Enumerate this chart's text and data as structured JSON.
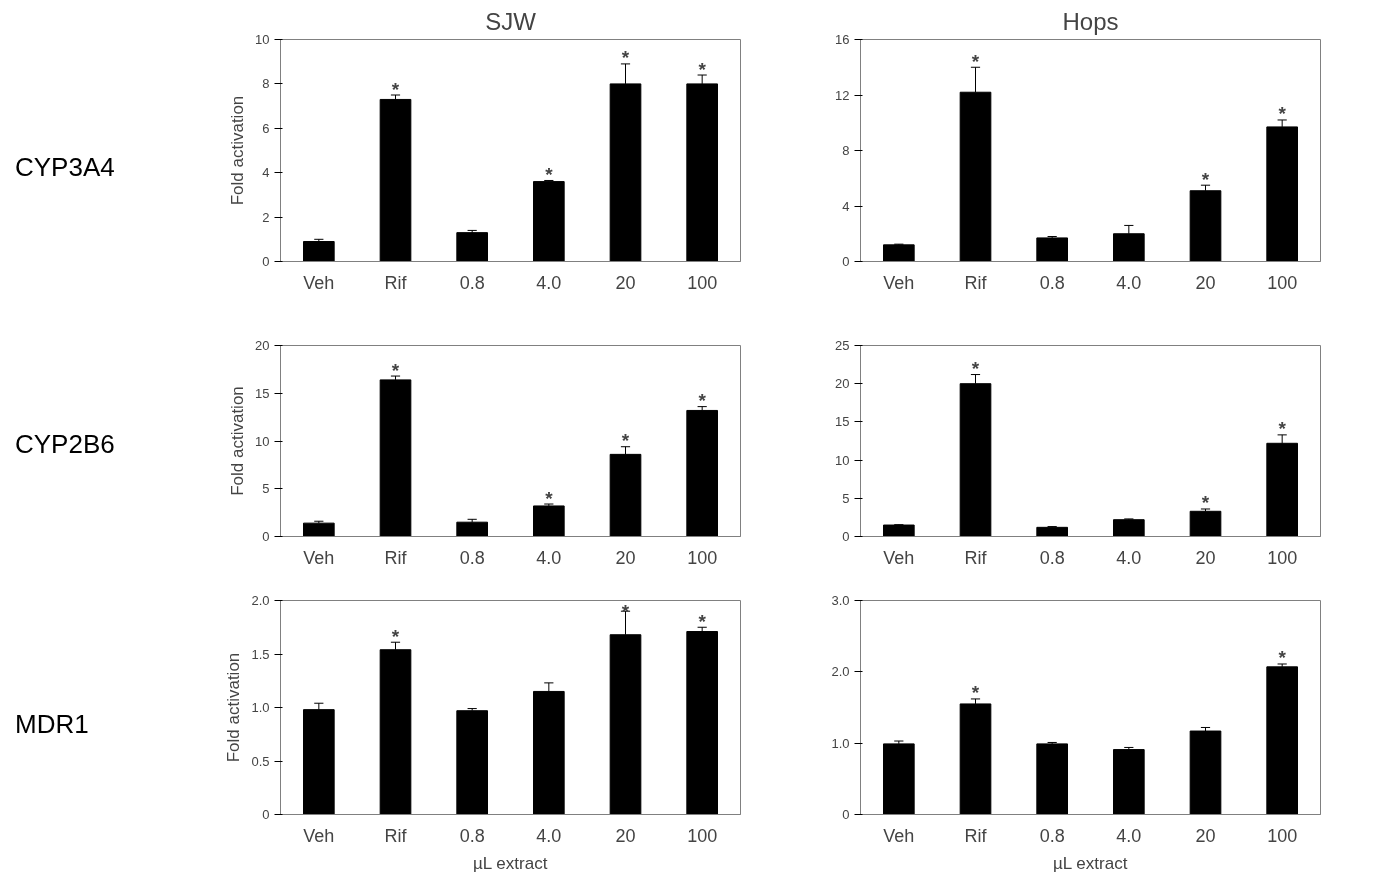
{
  "chart_data": [
    {
      "type": "bar",
      "title": "SJW",
      "ylabel": "Fold activation",
      "categories": [
        "Veh",
        "Rif",
        "0.8",
        "4.0",
        "20",
        "100"
      ],
      "series": [
        {
          "color": "#000000",
          "values": [
            0.9,
            7.3,
            1.3,
            3.6,
            8.0,
            8.0
          ],
          "errors": [
            [
              0.9,
              1.0
            ],
            [
              7.3,
              7.5
            ],
            [
              1.3,
              1.4
            ],
            [
              3.6,
              3.65
            ],
            [
              8.0,
              8.9
            ],
            [
              8.0,
              8.4
            ]
          ]
        }
      ],
      "ylim": [
        0,
        10
      ],
      "yticks": [
        0,
        2,
        4,
        6,
        8,
        10
      ],
      "grid": false,
      "annotations": [
        "CYP3A4",
        {
          "text": "*",
          "x": "Rif",
          "y": 7.5
        },
        {
          "text": "*",
          "x": "4.0",
          "y": 3.65
        },
        {
          "text": "*",
          "x": "20",
          "y": 8.9
        },
        {
          "text": "*",
          "x": "100",
          "y": 8.4
        }
      ]
    },
    {
      "type": "bar",
      "title": "Hops",
      "categories": [
        "Veh",
        "Rif",
        "0.8",
        "4.0",
        "20",
        "100"
      ],
      "series": [
        {
          "color": "#000000",
          "values": [
            1.2,
            12.2,
            1.7,
            2.0,
            5.1,
            9.7
          ],
          "errors": [
            [
              1.2,
              1.25
            ],
            [
              12.2,
              14.0
            ],
            [
              1.7,
              1.8
            ],
            [
              2.0,
              2.6
            ],
            [
              5.1,
              5.5
            ],
            [
              9.7,
              10.2
            ]
          ]
        }
      ],
      "ylim": [
        0,
        16
      ],
      "yticks": [
        0,
        4,
        8,
        12,
        16
      ],
      "grid": false,
      "annotations": [
        {
          "text": "*",
          "x": "Rif",
          "y": 14.0
        },
        {
          "text": "*",
          "x": "20",
          "y": 5.5
        },
        {
          "text": "*",
          "x": "100",
          "y": 10.2
        }
      ]
    },
    {
      "type": "bar",
      "ylabel": "Fold activation",
      "categories": [
        "Veh",
        "Rif",
        "0.8",
        "4.0",
        "20",
        "100"
      ],
      "series": [
        {
          "color": "#000000",
          "values": [
            1.4,
            16.4,
            1.5,
            3.2,
            8.6,
            13.2
          ],
          "errors": [
            [
              1.4,
              1.6
            ],
            [
              16.4,
              16.8
            ],
            [
              1.5,
              1.8
            ],
            [
              3.2,
              3.4
            ],
            [
              8.6,
              9.4
            ],
            [
              13.2,
              13.6
            ]
          ]
        }
      ],
      "ylim": [
        0,
        20
      ],
      "yticks": [
        0,
        5,
        10,
        15,
        20
      ],
      "grid": false,
      "annotations": [
        "CYP2B6",
        {
          "text": "*",
          "x": "Rif",
          "y": 16.8
        },
        {
          "text": "*",
          "x": "4.0",
          "y": 3.4
        },
        {
          "text": "*",
          "x": "20",
          "y": 9.4
        },
        {
          "text": "*",
          "x": "100",
          "y": 13.6
        }
      ]
    },
    {
      "type": "bar",
      "categories": [
        "Veh",
        "Rif",
        "0.8",
        "4.0",
        "20",
        "100"
      ],
      "series": [
        {
          "color": "#000000",
          "values": [
            1.5,
            20.0,
            1.2,
            2.2,
            3.3,
            12.2
          ],
          "errors": [
            [
              1.5,
              1.55
            ],
            [
              20.0,
              21.2
            ],
            [
              1.2,
              1.3
            ],
            [
              2.2,
              2.3
            ],
            [
              3.3,
              3.6
            ],
            [
              12.2,
              13.3
            ]
          ]
        }
      ],
      "ylim": [
        0,
        25
      ],
      "yticks": [
        0,
        5,
        10,
        15,
        20,
        25
      ],
      "grid": false,
      "annotations": [
        {
          "text": "*",
          "x": "Rif",
          "y": 21.2
        },
        {
          "text": "*",
          "x": "20",
          "y": 3.6
        },
        {
          "text": "*",
          "x": "100",
          "y": 13.3
        }
      ]
    },
    {
      "type": "bar",
      "ylabel": "Fold activation",
      "xlabel": "µL extract",
      "categories": [
        "Veh",
        "Rif",
        "0.8",
        "4.0",
        "20",
        "100"
      ],
      "series": [
        {
          "color": "#000000",
          "values": [
            0.98,
            1.54,
            0.97,
            1.15,
            1.68,
            1.71
          ],
          "errors": [
            [
              0.98,
              1.04
            ],
            [
              1.54,
              1.61
            ],
            [
              0.97,
              0.99
            ],
            [
              1.15,
              1.23
            ],
            [
              1.68,
              1.9
            ],
            [
              1.71,
              1.75
            ]
          ]
        }
      ],
      "ylim": [
        0,
        2
      ],
      "yticks": [
        0,
        0.5,
        {
          "value": 1,
          "label": "1.0"
        },
        1.5,
        {
          "value": 2,
          "label": "2.0"
        }
      ],
      "grid": false,
      "annotations": [
        "MDR1",
        {
          "text": "*",
          "x": "Rif",
          "y": 1.61
        },
        {
          "text": "*",
          "x": "20",
          "y": 1.9
        },
        {
          "text": "*",
          "x": "100",
          "y": 1.75
        }
      ]
    },
    {
      "type": "bar",
      "xlabel": "µL extract",
      "categories": [
        "Veh",
        "Rif",
        "0.8",
        "4.0",
        "20",
        "100"
      ],
      "series": [
        {
          "color": "#000000",
          "values": [
            0.99,
            1.55,
            0.99,
            0.91,
            1.17,
            2.07
          ],
          "errors": [
            [
              0.99,
              1.03
            ],
            [
              1.55,
              1.62
            ],
            [
              0.99,
              1.01
            ],
            [
              0.91,
              0.94
            ],
            [
              1.17,
              1.22
            ],
            [
              2.07,
              2.11
            ]
          ]
        }
      ],
      "ylim": [
        0,
        3
      ],
      "yticks": [
        0,
        {
          "value": 1,
          "label": "1.0"
        },
        {
          "value": 2,
          "label": "2.0"
        },
        {
          "value": 3,
          "label": "3.0"
        }
      ],
      "grid": false,
      "annotations": [
        {
          "text": "*",
          "x": "Rif",
          "y": 1.62
        },
        {
          "text": "*",
          "x": "100",
          "y": 2.11
        }
      ]
    }
  ]
}
